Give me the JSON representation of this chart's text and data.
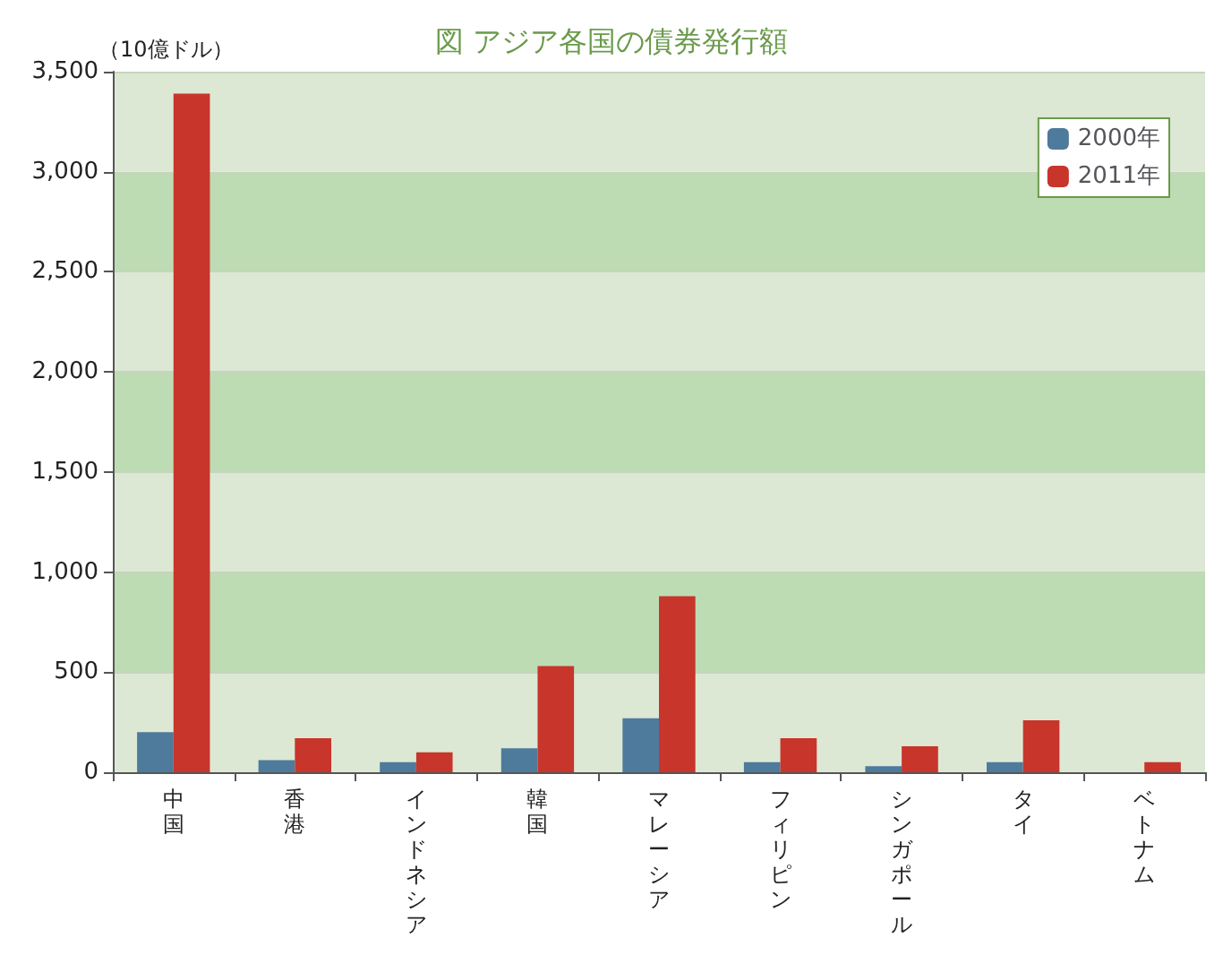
{
  "chart_data": {
    "type": "bar",
    "title": "図 アジア各国の債券発行額",
    "ylabel": "（10億ドル）",
    "categories": [
      "中国",
      "香港",
      "インドネシア",
      "韓国",
      "マレーシア",
      "フィリピン",
      "シンガポール",
      "タイ",
      "ベトナム"
    ],
    "series": [
      {
        "name": "2000年",
        "color": "#4e7a9c",
        "values": [
          200,
          60,
          50,
          120,
          270,
          50,
          30,
          50,
          0
        ]
      },
      {
        "name": "2011年",
        "color": "#c8352b",
        "values": [
          3390,
          170,
          100,
          530,
          880,
          170,
          130,
          260,
          50
        ]
      }
    ],
    "ylim": [
      0,
      3500
    ],
    "yticks": [
      0,
      500,
      {
        "value": 1000,
        "label": "1,000"
      },
      {
        "value": 1500,
        "label": "1,500"
      },
      {
        "value": 2000,
        "label": "2,000"
      },
      {
        "value": 2500,
        "label": "2,500"
      },
      {
        "value": 3000,
        "label": "3,000"
      },
      {
        "value": 3500,
        "label": "3,500"
      }
    ],
    "grid": true,
    "legend": "top right"
  }
}
